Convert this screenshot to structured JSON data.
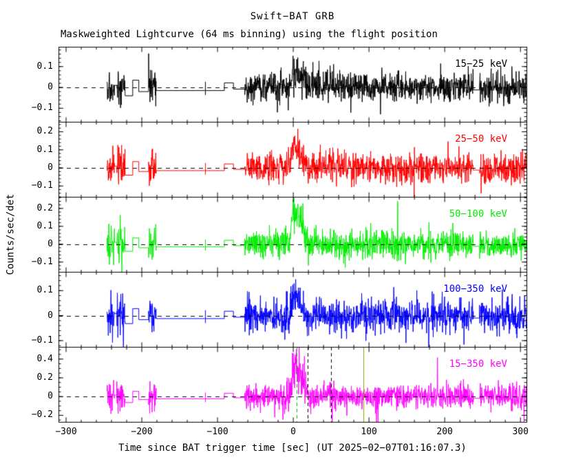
{
  "chart_data": {
    "type": "line",
    "title": "Swift−BAT GRB",
    "subtitle": "Maskweighted Lightcurve (64 ms binning) using the flight position",
    "xlabel": "Time since BAT trigger time [sec] (UT 2025−02−07T01:16:07.3)",
    "ylabel": "Counts/sec/det",
    "binning": "64 ms",
    "trigger_time_ut": "2025−02−07T01:16:07.3",
    "background": "#ffffff",
    "frame_color": "#000000",
    "xlim": [
      -310,
      308
    ],
    "xticks": [
      -300,
      -200,
      -100,
      0,
      100,
      200,
      300
    ],
    "xtick_labels": [
      "−300",
      "−200",
      "−100",
      "0",
      "100",
      "200",
      "300"
    ],
    "x_minor_step": 20,
    "zero_line": {
      "color": "#000000",
      "dash": [
        6,
        6
      ]
    },
    "burst": {
      "t_peak": 2,
      "sigma_rise": 3.5,
      "sigma_decay": 8,
      "envelope_sigma": 16,
      "envelope_boost": 0.55
    },
    "panels": [
      {
        "label": "15−25 keV",
        "color": "#000000",
        "ylim": [
          -0.165,
          0.195
        ],
        "yticks": [
          0.1,
          0,
          -0.1
        ],
        "ytick_labels": [
          "0.1",
          "0",
          "−0.1"
        ],
        "y_minor_step": 0.02,
        "noise_sigma": 0.035,
        "peak_amp": 0.08,
        "flat_scale": 1.0,
        "seed": 11
      },
      {
        "label": "25−50 keV",
        "color": "#ff0000",
        "ylim": [
          -0.16,
          0.255
        ],
        "yticks": [
          0.2,
          0.1,
          0,
          -0.1
        ],
        "ytick_labels": [
          "0.2",
          "0.1",
          "0",
          "−0.1"
        ],
        "y_minor_step": 0.02,
        "noise_sigma": 0.04,
        "peak_amp": 0.13,
        "flat_scale": 1.0,
        "seed": 22
      },
      {
        "label": "50−100 keV",
        "color": "#00ee00",
        "ylim": [
          -0.155,
          0.265
        ],
        "yticks": [
          0.2,
          0.1,
          0,
          -0.1
        ],
        "ytick_labels": [
          "0.2",
          "0.1",
          "0",
          "−0.1"
        ],
        "y_minor_step": 0.02,
        "noise_sigma": 0.04,
        "peak_amp": 0.19,
        "flat_scale": 1.0,
        "seed": 33
      },
      {
        "label": "100−350 keV",
        "color": "#0000ff",
        "ylim": [
          -0.125,
          0.175
        ],
        "yticks": [
          0.1,
          0,
          -0.1
        ],
        "ytick_labels": [
          "0.1",
          "0",
          "−0.1"
        ],
        "y_minor_step": 0.02,
        "noise_sigma": 0.034,
        "peak_amp": 0.09,
        "flat_scale": 0.8,
        "seed": 44
      },
      {
        "label": "15−350 keV",
        "color": "#ff00ff",
        "ylim": [
          -0.27,
          0.53
        ],
        "yticks": [
          0.4,
          0.2,
          0,
          -0.2
        ],
        "ytick_labels": [
          "0.4",
          "0.2",
          "0",
          "−0.2"
        ],
        "y_minor_step": 0.05,
        "noise_sigma": 0.065,
        "peak_amp": 0.36,
        "flat_scale": 1.6,
        "seed": 55
      }
    ],
    "segments": [
      {
        "type": "noise",
        "t0": -246,
        "t1": -236
      },
      {
        "type": "flat",
        "t0": -236,
        "t1": -233,
        "level": 0.01
      },
      {
        "type": "noise",
        "t0": -233,
        "t1": -222
      },
      {
        "type": "flat",
        "t0": -222,
        "t1": -212,
        "level": -0.04
      },
      {
        "type": "flat",
        "t0": -212,
        "t1": -204,
        "level": 0.035
      },
      {
        "type": "flat",
        "t0": -204,
        "t1": -191,
        "level": -0.02
      },
      {
        "type": "noise",
        "t0": -191,
        "t1": -181
      },
      {
        "type": "flat",
        "t0": -181,
        "t1": -117,
        "level": -0.015
      },
      {
        "type": "tick",
        "t": -116,
        "level": -0.005,
        "h": 0.032
      },
      {
        "type": "flat",
        "t0": -116,
        "t1": -91,
        "level": -0.015
      },
      {
        "type": "flat",
        "t0": -91,
        "t1": -79,
        "level": 0.022
      },
      {
        "type": "flat",
        "t0": -79,
        "t1": -64,
        "level": -0.008
      },
      {
        "type": "noise",
        "t0": -64,
        "t1": 238
      },
      {
        "type": "flat",
        "t0": 238,
        "t1": 246,
        "level": -0.012
      },
      {
        "type": "noise",
        "t0": 246,
        "t1": 308
      }
    ],
    "markers": [
      {
        "panel": 4,
        "t": 4,
        "color": "#00bb00",
        "dashed": true
      },
      {
        "panel": 4,
        "t": 19,
        "color": "#000000",
        "dashed": true
      },
      {
        "panel": 4,
        "t": 50,
        "color": "#000000",
        "dashed": true
      },
      {
        "panel": 4,
        "t": 93,
        "color": "#999900",
        "dashed": false
      }
    ]
  }
}
